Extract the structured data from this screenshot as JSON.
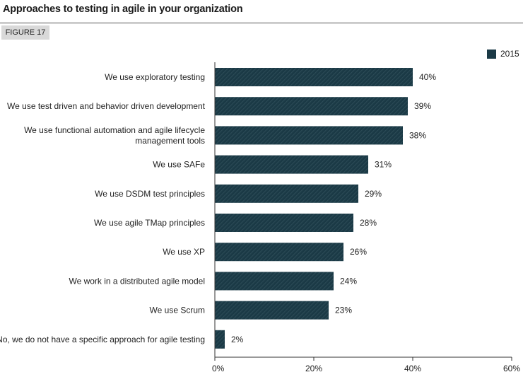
{
  "title": "Approaches to testing in agile in your organization",
  "figure_label": "FIGURE 17",
  "colors": {
    "bar": "#1b3a46",
    "hatch": "#34535e",
    "axis": "#333333"
  },
  "chart_data": {
    "type": "bar",
    "orientation": "horizontal",
    "title": "",
    "xlabel": "",
    "ylabel": "",
    "xlim": [
      0,
      60
    ],
    "x_ticks": [
      "0%",
      "20%",
      "40%",
      "60%"
    ],
    "x_tick_values": [
      0,
      20,
      40,
      60
    ],
    "legend": {
      "position": "top-right",
      "entries": [
        "2015"
      ]
    },
    "grid": false,
    "categories": [
      "We use exploratory testing",
      "We use test driven and behavior driven development",
      "We use functional automation and agile lifecycle management tools",
      "We use SAFe",
      "We use DSDM test principles",
      "We use agile TMap principles",
      "We use XP",
      "We work in a distributed agile model",
      "We use Scrum",
      "No, we do not have a specific approach for agile testing"
    ],
    "category_lines": [
      [
        "We use exploratory testing"
      ],
      [
        "We use test driven and behavior driven development"
      ],
      [
        "We use functional automation and agile lifecycle",
        "management tools"
      ],
      [
        "We use SAFe"
      ],
      [
        "We use DSDM test principles"
      ],
      [
        "We use agile TMap principles"
      ],
      [
        "We use XP"
      ],
      [
        "We work in a distributed agile model"
      ],
      [
        "We use Scrum"
      ],
      [
        "No, we do not have a specific approach for agile testing"
      ]
    ],
    "series": [
      {
        "name": "2015",
        "values": [
          40,
          39,
          38,
          31,
          29,
          28,
          26,
          24,
          23,
          2
        ],
        "labels": [
          "40%",
          "39%",
          "38%",
          "31%",
          "29%",
          "28%",
          "26%",
          "24%",
          "23%",
          "2%"
        ]
      }
    ]
  }
}
